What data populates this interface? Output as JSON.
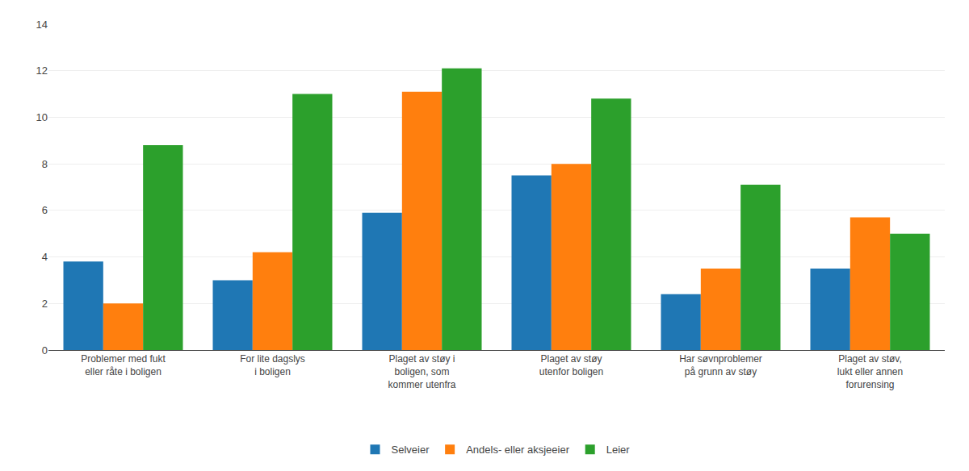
{
  "chart_data": {
    "type": "bar",
    "categories": [
      "Problemer med fukt\neller råte i boligen",
      "For lite dagslys\ni boligen",
      "Plaget av støy i\nboligen, som\nkommer utenfra",
      "Plaget av støy\nutenfor boligen",
      "Har søvnproblemer\npå grunn av støy",
      "Plaget av støv,\nlukt eller annen\nforurensing"
    ],
    "series": [
      {
        "name": "Selveier",
        "values": [
          3.8,
          3.0,
          5.9,
          7.5,
          2.4,
          3.5
        ]
      },
      {
        "name": "Andels- eller aksjeeier",
        "values": [
          2.0,
          4.2,
          11.1,
          8.0,
          3.5,
          5.7
        ]
      },
      {
        "name": "Leier",
        "values": [
          8.8,
          11.0,
          12.1,
          10.8,
          7.1,
          5.0
        ]
      }
    ],
    "ylim": [
      0,
      14
    ],
    "yticks": [
      0,
      2,
      4,
      6,
      8,
      10,
      12,
      14
    ],
    "grid": true,
    "legend": "bottom"
  }
}
